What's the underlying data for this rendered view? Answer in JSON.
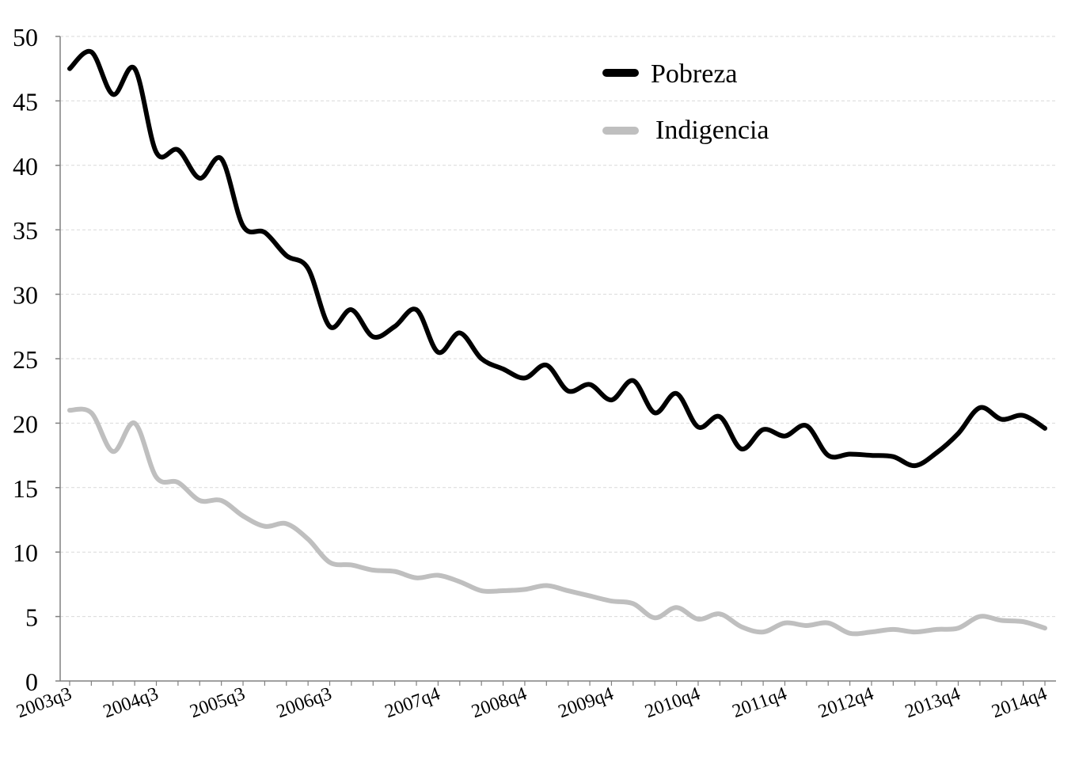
{
  "chart_data": {
    "type": "line",
    "title": "",
    "xlabel": "",
    "ylabel": "",
    "ylim": [
      0,
      50
    ],
    "yticks": [
      0,
      5,
      10,
      15,
      20,
      25,
      30,
      35,
      40,
      45,
      50
    ],
    "grid": true,
    "legend_position": "top-right",
    "x": [
      "2003q3",
      "2003q4",
      "2004q1",
      "2004q2",
      "2004q3",
      "2004q4",
      "2005q1",
      "2005q2",
      "2005q3",
      "2005q4",
      "2006q1",
      "2006q2",
      "2006q3",
      "2006q4",
      "2007q1",
      "2007q2",
      "2007q3",
      "2007q4",
      "2008q1",
      "2008q2",
      "2008q3",
      "2008q4",
      "2009q1",
      "2009q2",
      "2009q3",
      "2009q4",
      "2010q1",
      "2010q2",
      "2010q3",
      "2010q4",
      "2011q1",
      "2011q2",
      "2011q3",
      "2011q4",
      "2012q1",
      "2012q2",
      "2012q3",
      "2012q4",
      "2013q1",
      "2013q2",
      "2013q3",
      "2013q4",
      "2014q1",
      "2014q2",
      "2014q3",
      "2014q4"
    ],
    "xtick_labels": [
      "2003q3",
      "2004q3",
      "2005q3",
      "2006q3",
      "2007q4",
      "2008q4",
      "2009q4",
      "2010q4",
      "2011q4",
      "2012q4",
      "2013q4",
      "2014q4"
    ],
    "series": [
      {
        "name": "Pobreza",
        "color": "#000000",
        "values": [
          47.5,
          48.8,
          45.5,
          47.5,
          41.0,
          41.2,
          39.0,
          40.5,
          35.3,
          34.8,
          33.0,
          32.0,
          27.5,
          28.8,
          26.7,
          27.5,
          28.8,
          25.5,
          27.0,
          25.0,
          24.2,
          23.5,
          24.5,
          22.5,
          23.0,
          21.8,
          23.3,
          20.8,
          22.3,
          19.7,
          20.5,
          18.0,
          19.5,
          19.0,
          19.8,
          17.5,
          17.6,
          17.5,
          17.4,
          16.7,
          17.7,
          19.2,
          21.2,
          20.3,
          20.6,
          19.6
        ]
      },
      {
        "name": "Indigencia",
        "color": "#bfbfbf",
        "values": [
          21.0,
          20.8,
          17.8,
          20.0,
          15.8,
          15.4,
          14.0,
          14.0,
          12.8,
          12.0,
          12.2,
          11.0,
          9.2,
          9.0,
          8.6,
          8.5,
          8.0,
          8.2,
          7.7,
          7.0,
          7.0,
          7.1,
          7.4,
          7.0,
          6.6,
          6.2,
          6.0,
          4.9,
          5.7,
          4.8,
          5.2,
          4.2,
          3.8,
          4.5,
          4.3,
          4.5,
          3.7,
          3.8,
          4.0,
          3.8,
          4.0,
          4.1,
          5.0,
          4.7,
          4.6,
          4.1
        ]
      }
    ]
  }
}
